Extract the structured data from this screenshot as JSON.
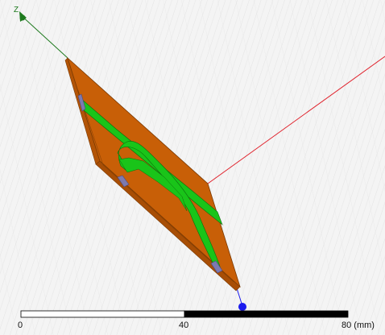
{
  "viewport": {
    "background": "#f4f4f4",
    "hatch_color": "#d9d9d9"
  },
  "axes": {
    "z_label": "Z",
    "z_color": "#1e7a1e",
    "x_color": "#e0202a",
    "y_color": "#1a1aee"
  },
  "model": {
    "substrate_color": "#c85f07",
    "substrate_edge_color": "#7a3a04",
    "trace_color": "#19c419",
    "trace_edge_color": "#0d6e0d",
    "port_color": "#7d7ab0"
  },
  "scale_bar": {
    "labels": {
      "start": "0",
      "mid": "40",
      "end": "80 (mm)"
    },
    "light_color": "#ffffff",
    "dark_color": "#000000"
  }
}
